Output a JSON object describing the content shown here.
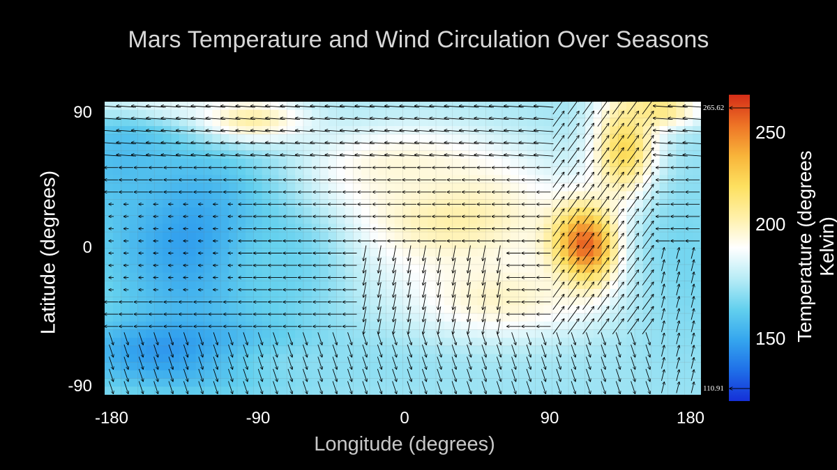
{
  "chart_data": {
    "type": "heatmap",
    "title": "Mars Temperature and Wind Circulation Over Seasons",
    "xlabel": "Longitude (degrees)",
    "ylabel": "Latitude (degrees)",
    "xlim": [
      -180,
      180
    ],
    "ylim": [
      -90,
      90
    ],
    "xticks": [
      "-180",
      "-90",
      "0",
      "90",
      "180"
    ],
    "yticks": [
      "90",
      "0",
      "-90"
    ],
    "colorbar": {
      "label": "Temperature (degrees Kelvin)",
      "range": [
        110.91,
        265.62
      ],
      "ticks": [
        "250",
        "200",
        "150"
      ],
      "max_marker": "265.62",
      "min_marker": "110.91",
      "colormap": [
        "#1530d8",
        "#1f6fe8",
        "#35a6ee",
        "#63d0ee",
        "#b8ecf6",
        "#ffffff",
        "#fff0a8",
        "#fde060",
        "#f8b43a",
        "#ee7426",
        "#d42d17"
      ]
    },
    "temperature_features": [
      {
        "name": "warm band",
        "lon": 30,
        "lat": 20,
        "temp": 205
      },
      {
        "name": "hot spot",
        "lon": 110,
        "lat": 0,
        "temp": 262
      },
      {
        "name": "warm tongue north",
        "lon": 135,
        "lat": 60,
        "temp": 225
      },
      {
        "name": "warm patch north",
        "lon": -95,
        "lat": 78,
        "temp": 215
      },
      {
        "name": "north-west edge",
        "lon": -160,
        "lat": 85,
        "temp": 205
      },
      {
        "name": "cold center west",
        "lon": -125,
        "lat": 5,
        "temp": 138
      },
      {
        "name": "cold south-west",
        "lon": -130,
        "lat": -65,
        "temp": 130
      },
      {
        "name": "cold east",
        "lon": 170,
        "lat": -10,
        "temp": 160
      }
    ],
    "wind": "arrow field: mostly westward flow at mid latitudes, southward flow near 0 longitude south of equator, northeastward flow along warm tongue near 120 longitude"
  }
}
